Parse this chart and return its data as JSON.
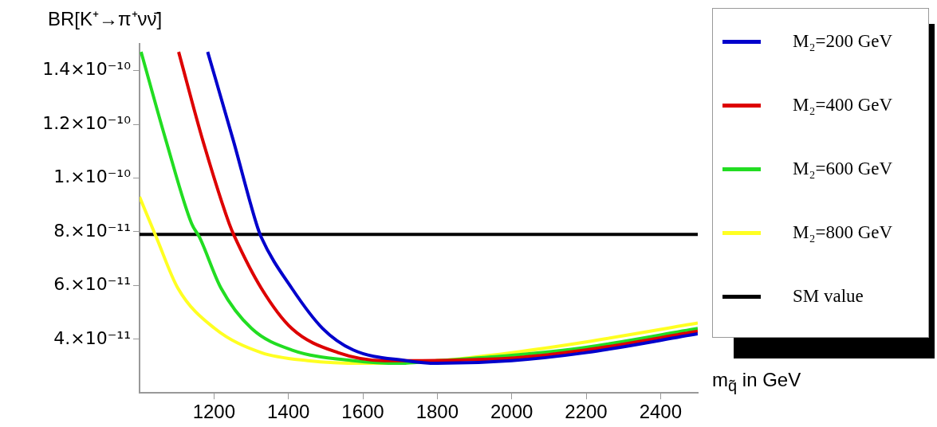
{
  "chart_data": {
    "type": "line",
    "ylabel": "BR[K⁺→π⁺νν̄]",
    "xlabel": "m$_{q̃}$ in GeV",
    "xlim": [
      1000,
      2500
    ],
    "xticks": [
      1200,
      1400,
      1600,
      1800,
      2000,
      2200,
      2400
    ],
    "ylim": [
      2e-11,
      1.5e-10
    ],
    "yticks": [
      {
        "value": 4e-11,
        "label": "4.×10⁻¹¹"
      },
      {
        "value": 6e-11,
        "label": "6.×10⁻¹¹"
      },
      {
        "value": 8e-11,
        "label": "8.×10⁻¹¹"
      },
      {
        "value": 1e-10,
        "label": "1.×10⁻¹⁰"
      },
      {
        "value": 1.2e-10,
        "label": "1.2×10⁻¹⁰"
      },
      {
        "value": 1.4e-10,
        "label": "1.4×10⁻¹⁰"
      }
    ],
    "grid": false,
    "legend": "right",
    "marker": "none",
    "line_style": "solid",
    "series": [
      {
        "name": "M₂=200 GeV",
        "color": "#0000cc",
        "x": [
          1183,
          1252,
          1314,
          1327,
          1409,
          1492,
          1574,
          1716,
          1800,
          2000,
          2200,
          2500
        ],
        "values": [
          1.47e-10,
          1.14e-10,
          8.3e-11,
          7.8e-11,
          5.9e-11,
          4.4e-11,
          3.6e-11,
          3.2e-11,
          3.1e-11,
          3.2e-11,
          3.5e-11,
          4.2e-11
        ]
      },
      {
        "name": "M₂=400 GeV",
        "color": "#dd0000",
        "x": [
          1105,
          1170,
          1241,
          1256,
          1327,
          1409,
          1533,
          1658,
          2000,
          2200,
          2500
        ],
        "values": [
          1.47e-10,
          1.14e-10,
          8.3e-11,
          7.8e-11,
          5.9e-11,
          4.4e-11,
          3.5e-11,
          3.2e-11,
          3.3e-11,
          3.6e-11,
          4.3e-11
        ]
      },
      {
        "name": "M₂=600 GeV",
        "color": "#22dd22",
        "x": [
          1004,
          1071,
          1140,
          1161,
          1219,
          1301,
          1409,
          1574,
          1700,
          1800,
          2000,
          2200,
          2500
        ],
        "values": [
          1.47e-10,
          1.14e-10,
          8.3e-11,
          7.8e-11,
          5.9e-11,
          4.4e-11,
          3.6e-11,
          3.2e-11,
          3.1e-11,
          3.2e-11,
          3.4e-11,
          3.7e-11,
          4.4e-11
        ]
      },
      {
        "name": "M₂=800 GeV",
        "color": "#ffff22",
        "x": [
          1000,
          1045,
          1103,
          1202,
          1327,
          1452,
          1600,
          1800,
          2000,
          2200,
          2500
        ],
        "values": [
          9.3e-11,
          7.8e-11,
          5.9e-11,
          4.4e-11,
          3.5e-11,
          3.2e-11,
          3.1e-11,
          3.2e-11,
          3.5e-11,
          3.9e-11,
          4.6e-11
        ]
      }
    ],
    "ref_lines": [
      {
        "axis": "y",
        "value": 7.9e-11,
        "label": "SM value",
        "color": "#000000"
      }
    ]
  }
}
